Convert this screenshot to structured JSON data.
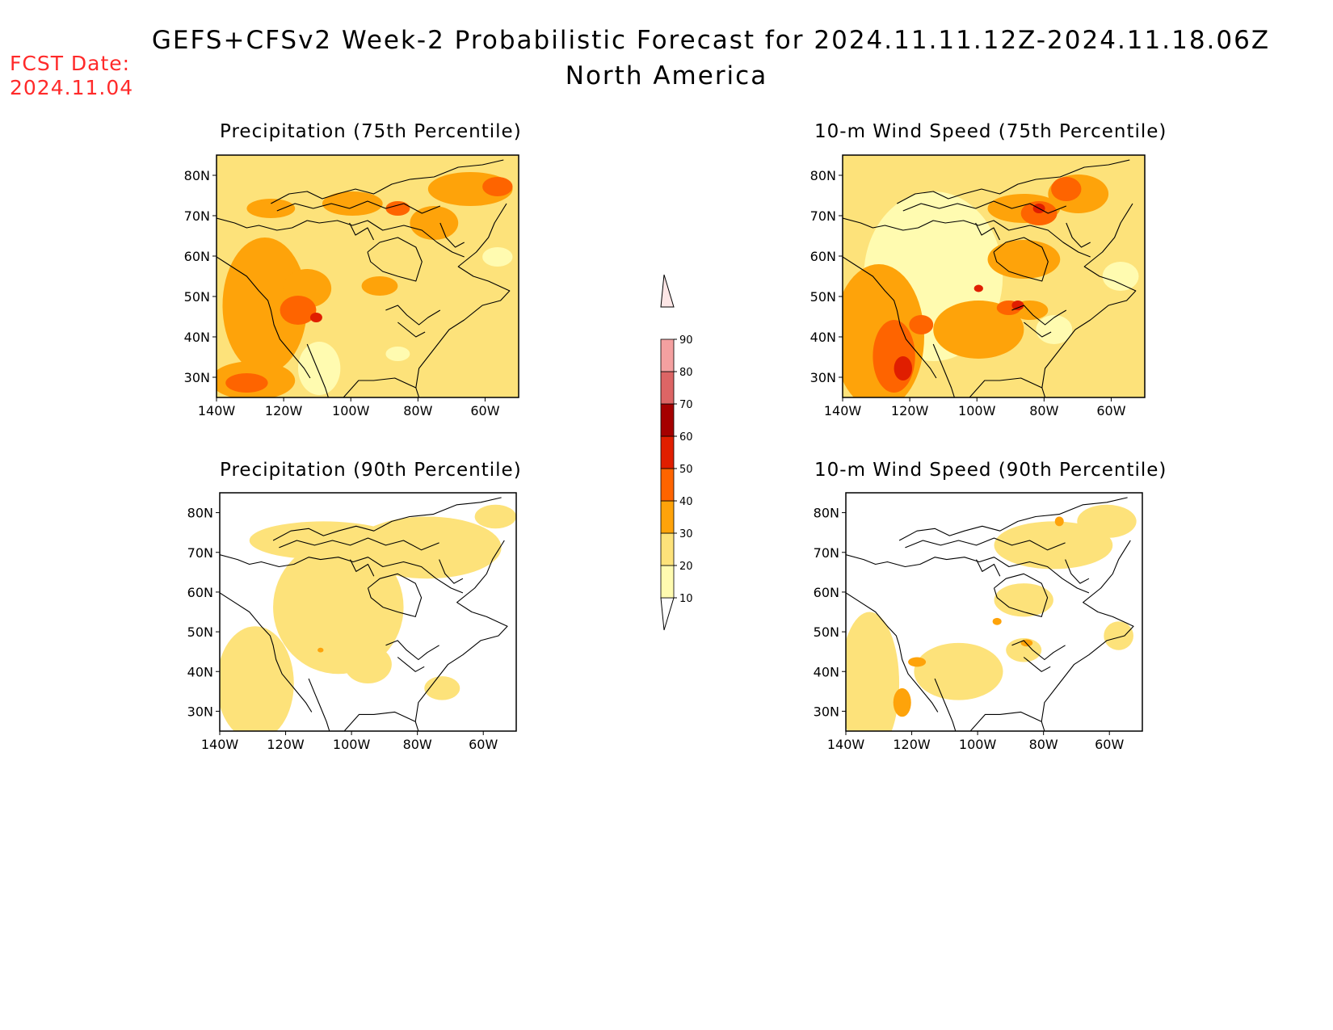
{
  "header": {
    "title": "GEFS+CFSv2 Week-2 Probabilistic Forecast for 2024.11.11.12Z-2024.11.18.06Z",
    "subtitle": "North America"
  },
  "fcst": {
    "label": "FCST Date:",
    "date": "2024.11.04"
  },
  "panels": [
    {
      "id": "precip75",
      "title": "Precipitation (75th Percentile)"
    },
    {
      "id": "wind75",
      "title": "10-m Wind Speed (75th Percentile)"
    },
    {
      "id": "precip90",
      "title": "Precipitation (90th Percentile)"
    },
    {
      "id": "wind90",
      "title": "10-m Wind Speed (90th Percentile)"
    }
  ],
  "axes": {
    "lon_ticks": [
      "140W",
      "120W",
      "100W",
      "80W",
      "60W"
    ],
    "lat_ticks": [
      "80N",
      "70N",
      "60N",
      "50N",
      "40N",
      "30N"
    ],
    "lon_range": [
      -140,
      -50
    ],
    "lat_range": [
      25,
      85
    ]
  },
  "colorbar": {
    "levels": [
      "10",
      "20",
      "30",
      "40",
      "50",
      "60",
      "70",
      "80",
      "90"
    ],
    "colors": [
      "#fffbb0",
      "#fde27a",
      "#fea30a",
      "#fe6400",
      "#e01e00",
      "#a50000",
      "#dc6565",
      "#f4a0a0",
      "#fde6e6"
    ]
  }
}
